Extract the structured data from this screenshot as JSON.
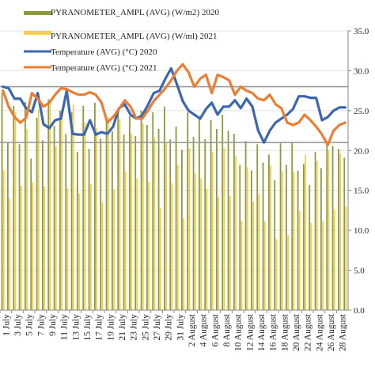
{
  "chart_data": {
    "type": "bar",
    "x_labels": [
      "1 July",
      "3 July",
      "5 July",
      "7 July",
      "9 July",
      "11 July",
      "13 July",
      "15 July",
      "17 July",
      "19 July",
      "21 July",
      "23 July",
      "25 July",
      "27 July",
      "29 July",
      "31 July",
      "2 August",
      "4 August",
      "6 August",
      "8 August",
      "10 August",
      "12 August",
      "14 August",
      "16 August",
      "18 August",
      "20 August",
      "22 August",
      "24 August",
      "26 August",
      "28 August"
    ],
    "y_right": {
      "ylim": [
        0,
        35
      ],
      "ticks": [
        "0.0",
        "5.0",
        "10.0",
        "15.0",
        "20.0",
        "25.0",
        "30.0",
        "35.0"
      ]
    },
    "reference_lines": [
      21,
      28
    ],
    "series": [
      {
        "name": "PYRANOMETER_AMPL (AVG) (W/m2) 2020",
        "kind": "bar",
        "color": "#8f9a3a",
        "values": [
          27.2,
          21.0,
          25.6,
          20.8,
          26.1,
          19.0,
          24.1,
          21.3,
          26.4,
          23.1,
          25.0,
          22.1,
          24.8,
          19.8,
          25.6,
          20.2,
          26.0,
          21.5,
          24.1,
          22.4,
          25.1,
          22.0,
          24.3,
          21.8,
          25.0,
          23.2,
          24.8,
          22.7,
          25.5,
          21.4,
          23.0,
          20.1,
          24.8,
          21.7,
          24.2,
          21.4,
          23.8,
          22.7,
          24.5,
          22.5,
          22.1,
          18.2,
          21.2,
          17.5,
          20.8,
          18.5,
          19.5,
          16.3,
          20.9,
          18.2,
          21.1,
          17.5,
          18.3,
          15.7,
          19.8,
          17.8,
          21.0,
          20.6,
          20.2,
          19.1
        ]
      },
      {
        "name": "PYRANOMETER_AMPL (AVG) (W/ml) 2021",
        "kind": "bar",
        "color": "#f2cf4f",
        "values": [
          17.5,
          14.0,
          24.8,
          15.6,
          22.7,
          16.0,
          25.1,
          15.5,
          26.2,
          20.5,
          25.3,
          15.3,
          25.8,
          14.6,
          23.5,
          15.8,
          22.8,
          13.5,
          24.2,
          15.1,
          23.9,
          17.4,
          22.1,
          16.5,
          23.4,
          16.1,
          21.6,
          12.8,
          21.0,
          15.9,
          18.2,
          11.5,
          20.3,
          17.1,
          16.5,
          15.2,
          19.8,
          14.2,
          20.3,
          14.3,
          19.3,
          11.2,
          17.9,
          13.6,
          14.5,
          11.1,
          18.2,
          8.9,
          17.4,
          9.4,
          17.3,
          12.4,
          19.5,
          10.9,
          18.7,
          11.2,
          20.0,
          12.6,
          19.6,
          13.0
        ]
      },
      {
        "name": "Temperature (AVG) (°C) 2020",
        "kind": "line",
        "color": "#3b66b1",
        "values": [
          28.0,
          27.8,
          26.5,
          26.5,
          25.3,
          24.8,
          27.2,
          23.3,
          22.8,
          23.8,
          24.0,
          27.5,
          22.1,
          22.0,
          22.0,
          23.8,
          22.0,
          22.3,
          22.1,
          23.0,
          25.3,
          25.8,
          24.5,
          24.0,
          24.4,
          25.7,
          27.2,
          27.5,
          29.0,
          30.3,
          28.3,
          26.2,
          25.0,
          24.5,
          24.0,
          25.2,
          26.0,
          24.5,
          25.5,
          25.5,
          26.3,
          25.3,
          26.5,
          25.5,
          22.5,
          21.0,
          22.5,
          23.5,
          24.0,
          24.5,
          25.2,
          26.8,
          26.8,
          26.6,
          26.6,
          23.8,
          24.2,
          25.0,
          25.4,
          25.4
        ]
      },
      {
        "name": "Temperature (AVG) (°C) 2021",
        "kind": "line",
        "color": "#ec7d31",
        "values": [
          27.5,
          25.5,
          24.2,
          23.5,
          24.1,
          27.2,
          26.5,
          25.5,
          26.0,
          27.0,
          27.8,
          27.7,
          27.3,
          27.0,
          27.0,
          27.3,
          27.0,
          26.0,
          23.5,
          24.2,
          25.2,
          26.3,
          25.5,
          24.0,
          24.0,
          25.0,
          26.2,
          27.0,
          27.8,
          28.8,
          30.0,
          30.8,
          29.8,
          28.0,
          29.0,
          29.5,
          27.2,
          29.5,
          29.2,
          28.8,
          27.0,
          28.0,
          27.5,
          27.2,
          26.5,
          26.3,
          27.0,
          25.8,
          25.3,
          23.5,
          23.2,
          23.5,
          24.5,
          23.8,
          23.0,
          22.0,
          20.7,
          22.5,
          23.2,
          23.5
        ]
      }
    ],
    "legend": "top-left"
  }
}
